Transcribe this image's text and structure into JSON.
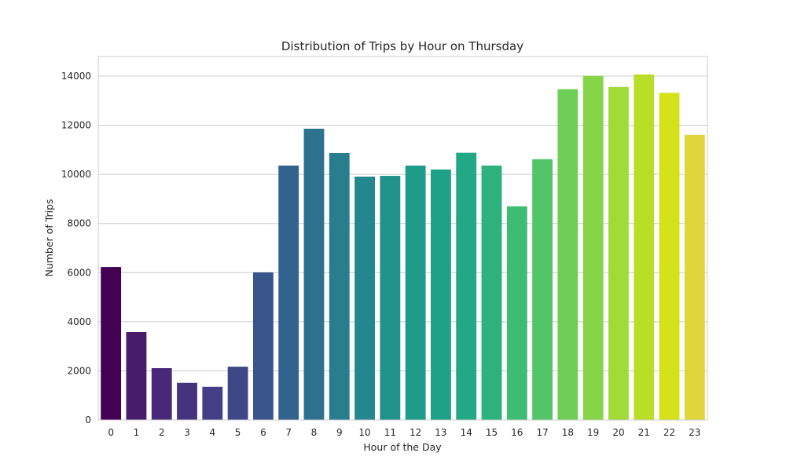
{
  "chart_data": {
    "type": "bar",
    "title": "Distribution of Trips by Hour on Thursday",
    "xlabel": "Hour of the Day",
    "ylabel": "Number of Trips",
    "ylim": [
      0,
      14800
    ],
    "yticks": [
      0,
      2000,
      4000,
      6000,
      8000,
      10000,
      12000,
      14000
    ],
    "grid": "horizontal",
    "palette": "viridis",
    "categories": [
      "0",
      "1",
      "2",
      "3",
      "4",
      "5",
      "6",
      "7",
      "8",
      "9",
      "10",
      "11",
      "12",
      "13",
      "14",
      "15",
      "16",
      "17",
      "18",
      "19",
      "20",
      "21",
      "22",
      "23"
    ],
    "values": [
      6230,
      3580,
      2110,
      1510,
      1350,
      2170,
      6010,
      10360,
      11860,
      10870,
      9910,
      9940,
      10360,
      10200,
      10880,
      10360,
      8700,
      10620,
      13470,
      14010,
      13560,
      14070,
      13320,
      11610
    ],
    "colors": [
      "#440154",
      "#471d6a",
      "#482878",
      "#46337e",
      "#433e85",
      "#3f4788",
      "#3a548c",
      "#31638e",
      "#2c718e",
      "#287d8e",
      "#24868e",
      "#21918c",
      "#1f9b8a",
      "#1fa188",
      "#22a884",
      "#2db27d",
      "#3fbc73",
      "#52c569",
      "#6ece58",
      "#86d549",
      "#a2da37",
      "#bade28",
      "#d5e21a",
      "#e0d53a"
    ]
  }
}
